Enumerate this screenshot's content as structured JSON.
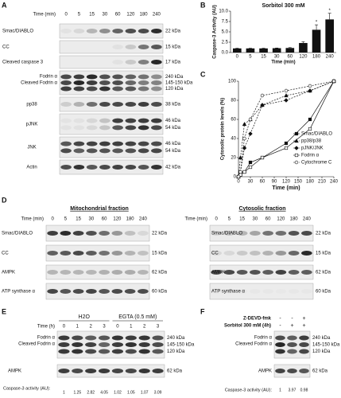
{
  "panels": {
    "A": {
      "letter": "A",
      "time_label": "Time (min)",
      "times": [
        "0",
        "5",
        "15",
        "30",
        "60",
        "120",
        "180",
        "240"
      ],
      "rows": [
        {
          "label": "Smac/DIABLO",
          "kda": [
            "22 kDa"
          ]
        },
        {
          "label": "CC",
          "kda": [
            "15 kDa"
          ]
        },
        {
          "label": "Cleaved caspase 3",
          "kda": [
            "17 kDa"
          ]
        },
        {
          "label": "Fodrin α",
          "label2": "Cleaved Fodrin α",
          "kda": [
            "240 kDa",
            "145-150 kDa",
            "120 kDa"
          ]
        },
        {
          "label": "pp38",
          "kda": [
            "38 kDa"
          ]
        },
        {
          "label": "pJNK",
          "kda": [
            "46 kDa",
            "54 kDa"
          ]
        },
        {
          "label": "JNK",
          "kda": [
            "46 kDa",
            "54 kDa"
          ]
        },
        {
          "label": "Actin",
          "kda": [
            "42 kDa"
          ]
        }
      ]
    },
    "D": {
      "letter": "D",
      "mito_title": "Mitochondrial fraction",
      "cyto_title": "Cytosolic fraction",
      "time_label": "Time (min)",
      "times": [
        "0",
        "5",
        "15",
        "30",
        "60",
        "120",
        "180",
        "240"
      ],
      "rows": [
        {
          "label": "Smac/DIABLO",
          "kda": "22 kDa"
        },
        {
          "label": "CC",
          "kda": "15 kDa"
        },
        {
          "label": "AMPK",
          "kda": "62 kDa"
        },
        {
          "label": "ATP synthase α",
          "kda": "60 kDa"
        }
      ]
    },
    "E": {
      "letter": "E",
      "group1": "H2O",
      "group2": "EGTA (0.5 mM)",
      "time_label": "Time (h)",
      "times": [
        "0",
        "1",
        "2",
        "3",
        "0",
        "1",
        "2",
        "3"
      ],
      "fodrin": "Fodrin α",
      "cleaved": "Cleaved Fodrin α",
      "kda": [
        "240 kDa",
        "145-150 kDa",
        "120 kDa"
      ],
      "ampk": "AMPK",
      "ampk_kda": "62 kDa",
      "activity_label": "Caspase-3 activity (AU):",
      "activity": [
        "1",
        "1.25",
        "2.82",
        "4.05",
        "1.02",
        "1.05",
        "1.07",
        "3.09"
      ]
    },
    "F": {
      "letter": "F",
      "row1": "Z-DEVD-fmk",
      "row2": "Sorbitol 300 mM (4h)",
      "signs1": [
        "-",
        "-",
        "+"
      ],
      "signs2": [
        "-",
        "+",
        "+"
      ],
      "fodrin": "Fodrin α",
      "cleaved": "Cleaved Fodrin α",
      "kda": [
        "240 kDa",
        "145-150 kDa",
        "120 kDa"
      ],
      "ampk": "AMPK",
      "ampk_kda": "62 kDa",
      "activity_label": "Caspase-3 activity (AU):",
      "activity": [
        "1",
        "3.97",
        "0.98"
      ]
    }
  },
  "chart_data": [
    {
      "type": "bar",
      "panel": "B",
      "title": "Sorbitol 300 mM",
      "xlabel": "Time (min)",
      "ylabel": "Caspase-3 Activity (AU)",
      "categories": [
        "0",
        "5",
        "15",
        "30",
        "60",
        "120",
        "180",
        "240"
      ],
      "values": [
        1.0,
        1.0,
        1.0,
        1.05,
        1.1,
        2.3,
        5.5,
        8.0
      ],
      "errors": [
        0.05,
        0.05,
        0.05,
        0.05,
        0.1,
        0.3,
        1.2,
        1.5
      ],
      "color": "#111111",
      "ylim": [
        0,
        10
      ],
      "yticks": [
        {
          "value": 0,
          "label": "0.0"
        },
        2.5,
        {
          "value": 5,
          "label": "5.0"
        },
        7.5,
        {
          "value": 10,
          "label": "10.0"
        }
      ],
      "annotations": [
        {
          "text": "*",
          "category": "180"
        },
        {
          "text": "*",
          "category": "240"
        }
      ]
    },
    {
      "type": "line",
      "panel": "C",
      "xlabel": "Time (min)",
      "ylabel": "Cytosolic protein levels (%)",
      "x": [
        0,
        5,
        15,
        30,
        60,
        120,
        180,
        240
      ],
      "xlim": [
        0,
        240
      ],
      "xticks": [
        0,
        30,
        60,
        90,
        120,
        150,
        180,
        210,
        240
      ],
      "ylim": [
        0,
        100
      ],
      "yticks": [
        0,
        20,
        40,
        60,
        80,
        100
      ],
      "legend": "right",
      "series": [
        {
          "name": "Smac/DIABLO",
          "color": "#111111",
          "marker": "square",
          "filled": true,
          "dashed": false,
          "values": [
            0,
            2,
            5,
            15,
            20,
            35,
            60,
            100
          ]
        },
        {
          "name": "pp38/p38",
          "color": "#111111",
          "marker": "triangle",
          "filled": true,
          "dashed": true,
          "values": [
            0,
            20,
            55,
            60,
            75,
            85,
            90,
            100
          ]
        },
        {
          "name": "pJNK/JNK",
          "color": "#111111",
          "marker": "diamond",
          "filled": true,
          "dashed": true,
          "values": [
            0,
            5,
            30,
            45,
            75,
            80,
            90,
            100
          ]
        },
        {
          "name": "Fodrin α",
          "color": "#111111",
          "marker": "square",
          "filled": false,
          "dashed": false,
          "values": [
            0,
            2,
            5,
            10,
            20,
            30,
            50,
            100
          ]
        },
        {
          "name": "Cytochrome C",
          "color": "#111111",
          "marker": "circle",
          "filled": false,
          "dashed": true,
          "values": [
            0,
            5,
            40,
            60,
            85,
            90,
            95,
            100
          ]
        }
      ]
    }
  ]
}
